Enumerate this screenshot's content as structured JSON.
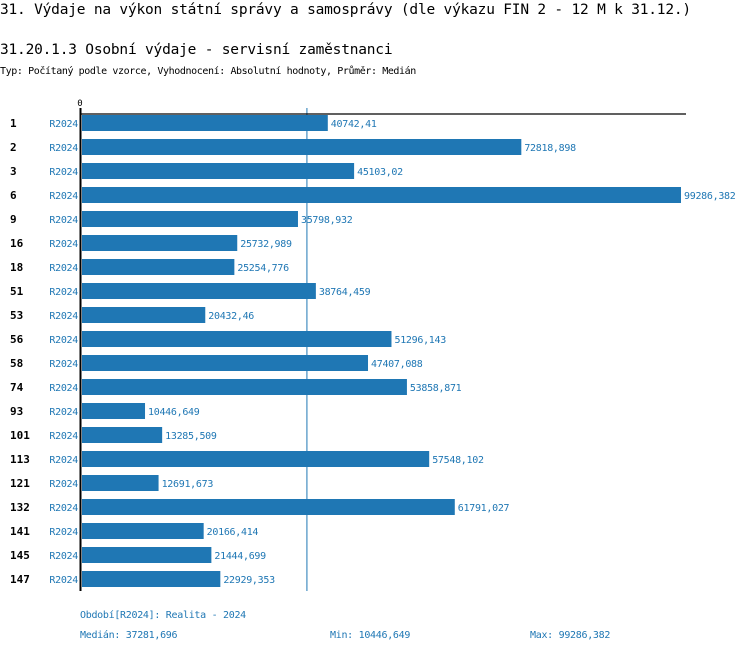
{
  "header": {
    "title": "31. Výdaje na výkon státní správy a samosprávy (dle výkazu FIN 2 - 12 M k 31.12.)",
    "subtitle": "31.20.1.3 Osobní výdaje - servisní zaměstnanci",
    "description": "Typ: Počítaný podle vzorce, Vyhodnocení: Absolutní hodnoty, Průměr: Medián"
  },
  "colors": {
    "bar": "#1f77b4",
    "axis": "#000000",
    "label": "#1f77b4",
    "median_line": "#1f77b4"
  },
  "chart_data": {
    "type": "bar",
    "orientation": "horizontal",
    "x_tick_label": "0",
    "xlim": [
      0,
      99286.382
    ],
    "categories": [
      "1",
      "2",
      "3",
      "6",
      "9",
      "16",
      "18",
      "51",
      "53",
      "56",
      "58",
      "74",
      "93",
      "101",
      "113",
      "121",
      "132",
      "141",
      "145",
      "147"
    ],
    "series_label": "R2024",
    "values": [
      40742.41,
      72818.898,
      45103.02,
      99286.382,
      35798.932,
      25732.989,
      25254.776,
      38764.459,
      20432.46,
      51296.143,
      47407.088,
      53858.871,
      10446.649,
      13285.509,
      57548.102,
      12691.673,
      61791.027,
      20166.414,
      21444.699,
      22929.353
    ],
    "value_labels": [
      "40742,41",
      "72818,898",
      "45103,02",
      "99286,382",
      "35798,932",
      "25732,989",
      "25254,776",
      "38764,459",
      "20432,46",
      "51296,143",
      "47407,088",
      "53858,871",
      "10446,649",
      "13285,509",
      "57548,102",
      "12691,673",
      "61791,027",
      "20166,414",
      "21444,699",
      "22929,353"
    ],
    "median": 37281.696
  },
  "footer": {
    "period": "Období[R2024]: Realita - 2024",
    "median": "Medián: 37281,696",
    "min": "Min: 10446,649",
    "max": "Max: 99286,382"
  }
}
